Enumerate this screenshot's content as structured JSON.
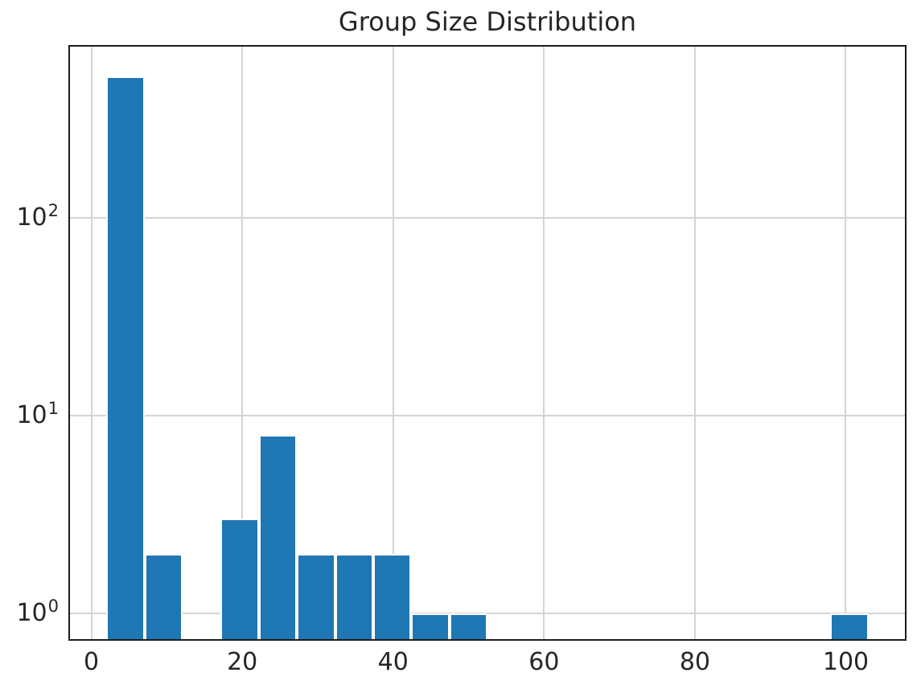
{
  "figure": {
    "title": "Group Size Distribution",
    "background_color": "#ffffff"
  },
  "colors": {
    "bar_fill": "#1f77b4",
    "bar_edge": "#ffffff",
    "grid": "#d4d4d4",
    "spine": "#1c1c1c",
    "text": "#262626"
  },
  "chart_data": {
    "type": "bar",
    "subtype": "histogram",
    "title": "Group Size Distribution",
    "xlabel": "",
    "ylabel": "",
    "yscale": "log",
    "grid": true,
    "legend": false,
    "xlim": [
      -3.05,
      108.05
    ],
    "ylim": [
      0.726,
      746
    ],
    "x_ticks": [
      0,
      20,
      40,
      60,
      80,
      100
    ],
    "y_ticks": [
      {
        "value": 1,
        "base": "10",
        "exponent": "0"
      },
      {
        "value": 10,
        "base": "10",
        "exponent": "1"
      },
      {
        "value": 100,
        "base": "10",
        "exponent": "2"
      }
    ],
    "bin_edges": [
      2.0,
      7.05,
      12.1,
      17.15,
      22.2,
      27.25,
      32.3,
      37.35,
      42.4,
      47.45,
      52.5,
      57.55,
      62.6,
      67.65,
      72.7,
      77.75,
      82.8,
      87.85,
      92.9,
      97.95,
      103.0
    ],
    "counts": [
      520,
      2,
      0,
      3,
      8,
      2,
      2,
      2,
      1,
      1,
      0,
      0,
      0,
      0,
      0,
      0,
      0,
      0,
      0,
      1
    ]
  }
}
